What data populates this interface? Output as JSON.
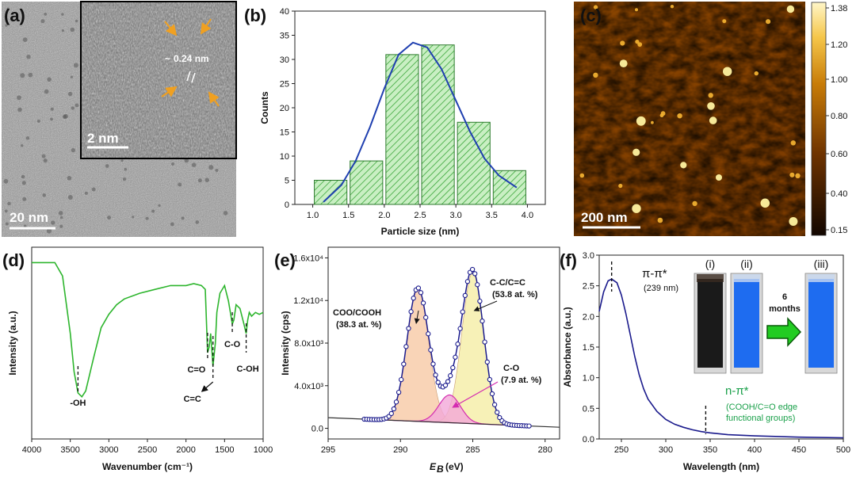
{
  "panels": {
    "a": {
      "label": "(a)",
      "inset_annotation_prefix": "~",
      "inset_annotation": "0.24 nm",
      "inset_scale": "2 nm",
      "scale": "20 nm"
    },
    "b": {
      "label": "(b)"
    },
    "c": {
      "label": "(c)",
      "scale": "200 nm",
      "colorbar_ticks": [
        "1.38",
        "1.20",
        "1.00",
        "0.80",
        "0.60",
        "0.40",
        "0.15"
      ],
      "colors": {
        "low": "#1a0800",
        "mid": "#b86a00",
        "high": "#fff6c0"
      }
    },
    "d": {
      "label": "(d)",
      "peaks": {
        "oh": "-OH",
        "c_o_double": "C=O",
        "c_c": "C=C",
        "c_o": "C-O",
        "c_oh": "C-OH"
      }
    },
    "e": {
      "label": "(e)",
      "peaks": {
        "cooh": "COO/COOH",
        "cooh_pct": "(38.3 at. %)",
        "cc": "C-C/C=C",
        "cc_pct": "(53.8 at. %)",
        "co": "C-O",
        "co_pct": "(7.9 at. %)"
      }
    },
    "f": {
      "label": "(f)",
      "pipi": "π-π*",
      "pipi_nm": "(239 nm)",
      "npi": "n-π*",
      "npi_desc_1": "(COOH/C=O edge",
      "npi_desc_2": "functional groups)",
      "vial_labels": [
        "(i)",
        "(ii)",
        "(iii)"
      ],
      "arrow_text_1": "6",
      "arrow_text_2": "months",
      "colors": {
        "curve": "#1a1a8c",
        "npi": "#1aa04a",
        "arrow": "#22cc22",
        "vial_blue": "#1e6cf0"
      }
    }
  },
  "chart_data": [
    {
      "id": "b",
      "type": "bar",
      "title": "",
      "xlabel": "Particle size (nm)",
      "ylabel": "Counts",
      "xlim": [
        0.75,
        4.25
      ],
      "ylim": [
        0,
        40
      ],
      "xticks": [
        "1.0",
        "1.5",
        "2.0",
        "2.5",
        "3.0",
        "3.5",
        "4.0"
      ],
      "yticks": [
        "0",
        "5",
        "10",
        "15",
        "20",
        "25",
        "30",
        "35",
        "40"
      ],
      "bins": [
        [
          1.0,
          1.5
        ],
        [
          1.5,
          2.0
        ],
        [
          2.0,
          2.5
        ],
        [
          2.5,
          3.0
        ],
        [
          3.0,
          3.5
        ],
        [
          3.5,
          4.0
        ]
      ],
      "values": [
        5,
        9,
        31,
        33,
        17,
        7
      ],
      "fit_curve": {
        "x": [
          1.15,
          1.4,
          1.6,
          1.8,
          2.0,
          2.2,
          2.4,
          2.6,
          2.8,
          3.0,
          3.2,
          3.4,
          3.6,
          3.85
        ],
        "y": [
          0.5,
          4,
          9,
          16,
          24,
          31,
          33.5,
          32.5,
          28,
          21.5,
          15,
          9.5,
          6,
          3.5
        ]
      },
      "colors": {
        "bar_fill": "#c9efc3",
        "hatch": "#3aa63a",
        "curve": "#1f3fb0"
      }
    },
    {
      "id": "d",
      "type": "line",
      "title": "",
      "xlabel": "Wavenumber (cm⁻¹)",
      "ylabel": "Intensity (a.u.)",
      "xlim": [
        4000,
        1000
      ],
      "ylim": [
        0,
        1
      ],
      "xticks": [
        "4000",
        "3500",
        "3000",
        "2500",
        "2000",
        "1500",
        "1000"
      ],
      "x": [
        4000,
        3700,
        3600,
        3500,
        3450,
        3400,
        3350,
        3300,
        3200,
        3100,
        3000,
        2900,
        2800,
        2600,
        2400,
        2200,
        2000,
        1900,
        1800,
        1750,
        1720,
        1700,
        1680,
        1650,
        1620,
        1600,
        1560,
        1500,
        1450,
        1400,
        1380,
        1350,
        1300,
        1250,
        1220,
        1200,
        1180,
        1150,
        1100,
        1050,
        1000
      ],
      "y": [
        0.92,
        0.92,
        0.85,
        0.55,
        0.35,
        0.24,
        0.22,
        0.25,
        0.42,
        0.58,
        0.65,
        0.7,
        0.73,
        0.76,
        0.78,
        0.8,
        0.8,
        0.81,
        0.8,
        0.78,
        0.45,
        0.48,
        0.55,
        0.38,
        0.5,
        0.66,
        0.76,
        0.8,
        0.72,
        0.6,
        0.62,
        0.7,
        0.68,
        0.6,
        0.55,
        0.62,
        0.66,
        0.64,
        0.66,
        0.65,
        0.66
      ],
      "colors": {
        "line": "#2db52d"
      }
    },
    {
      "id": "e",
      "type": "line",
      "title": "",
      "xlabel": "E_B (eV)",
      "xlabel_main": "E",
      "xlabel_sub": "B",
      "xlabel_unit": "(eV)",
      "ylabel": "Intensity (cps)",
      "xlim": [
        295,
        279
      ],
      "ylim": [
        -1000,
        17000
      ],
      "xticks": [
        "295",
        "290",
        "285",
        "280"
      ],
      "yticks": [
        "0.0",
        "4.0x10³",
        "8.0x10³",
        "1.2x10⁴",
        "1.6x10⁴"
      ],
      "series": [
        {
          "name": "COO/COOH",
          "center": 288.8,
          "amplitude": 12500,
          "sigma": 0.75,
          "fill": "#f7c9a5"
        },
        {
          "name": "C-C/C=C",
          "center": 285.0,
          "amplitude": 14200,
          "sigma": 0.75,
          "fill": "#f5eda5"
        },
        {
          "name": "C-O",
          "center": 286.6,
          "amplitude": 2600,
          "sigma": 0.75,
          "fill": "#f2a8d8"
        }
      ],
      "baseline": {
        "x": [
          295,
          279
        ],
        "y": [
          1000,
          100
        ]
      },
      "colors": {
        "envelope": "#1a1a8c",
        "marker": "#1a1a8c",
        "baseline": "#333333",
        "co_line": "#d42cb0"
      }
    },
    {
      "id": "f",
      "type": "line",
      "title": "",
      "xlabel": "Wavelength (nm)",
      "ylabel": "Absorbance (a.u.)",
      "xlim": [
        225,
        500
      ],
      "ylim": [
        0,
        3.0
      ],
      "xticks": [
        "250",
        "300",
        "350",
        "400",
        "450",
        "500"
      ],
      "yticks": [
        "0.0",
        "0.5",
        "1.0",
        "1.5",
        "2.0",
        "2.5",
        "3.0"
      ],
      "x": [
        225,
        230,
        235,
        239,
        245,
        250,
        255,
        260,
        265,
        270,
        275,
        280,
        290,
        300,
        310,
        320,
        330,
        340,
        350,
        370,
        400,
        450,
        500
      ],
      "y": [
        2.08,
        2.4,
        2.58,
        2.61,
        2.55,
        2.35,
        2.05,
        1.7,
        1.35,
        1.05,
        0.82,
        0.65,
        0.45,
        0.32,
        0.24,
        0.19,
        0.15,
        0.12,
        0.1,
        0.07,
        0.05,
        0.03,
        0.02
      ],
      "colors": {
        "line": "#1a1a8c"
      }
    }
  ]
}
